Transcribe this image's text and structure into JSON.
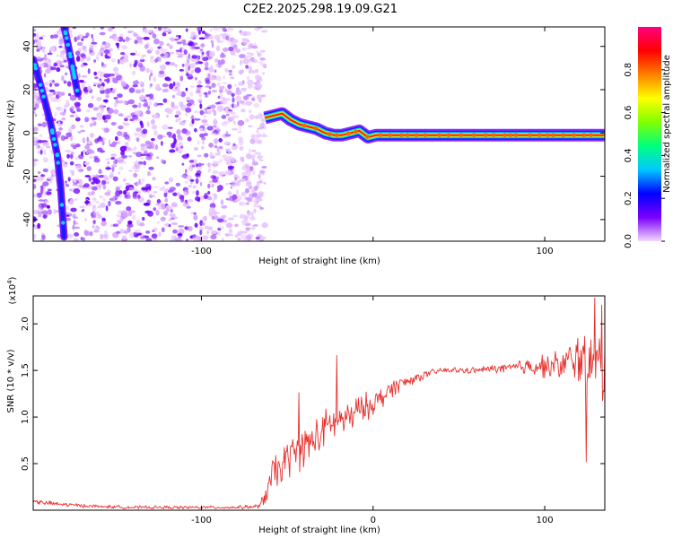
{
  "title": "C2E2.2025.298.19.09.G21",
  "chart_data": [
    {
      "type": "heatmap",
      "xlabel": "Height of straight line (km)",
      "ylabel": "Frequency (Hz)",
      "xlim": [
        -198,
        135
      ],
      "ylim": [
        -50,
        49
      ],
      "xticks": [
        -100,
        0,
        100
      ],
      "xtick_labels": [
        "-100",
        "",
        "100"
      ],
      "yticks": [
        -40,
        -20,
        0,
        20,
        40
      ],
      "colorbar": {
        "label": "Normalized spectral amplitude",
        "range": [
          0,
          1
        ],
        "ticks": [
          0.0,
          0.2,
          0.4,
          0.6,
          0.8
        ],
        "tick_labels": [
          "0.0",
          "0.2",
          "0.4",
          "0.6",
          "0.8"
        ],
        "colormap": [
          "#f4d9ff",
          "#7a00ff",
          "#0000ff",
          "#00c8ff",
          "#00ff80",
          "#80ff00",
          "#ffff00",
          "#ff8000",
          "#ff0000",
          "#ff0080"
        ]
      },
      "noise_region_x": [
        -198,
        -63
      ],
      "trace": {
        "x": [
          -63,
          -58,
          -53,
          -48,
          -43,
          -38,
          -33,
          -28,
          -23,
          -18,
          -13,
          -8,
          -3,
          2,
          7,
          12,
          20,
          40,
          60,
          80,
          100,
          120,
          135
        ],
        "y": [
          7,
          8,
          9,
          6,
          4,
          3,
          2,
          0,
          -1,
          -1,
          0,
          1,
          -2,
          -1,
          -1,
          -1,
          -1,
          -1,
          -1,
          -1,
          -1,
          -1,
          -1
        ]
      },
      "diagonal_streaks": [
        {
          "x": [
            -198,
            -193,
            -188,
            -184,
            -182,
            -180
          ],
          "y": [
            34,
            20,
            5,
            -10,
            -25,
            -48
          ]
        },
        {
          "x": [
            -180,
            -178,
            -175,
            -172
          ],
          "y": [
            49,
            42,
            30,
            18
          ]
        }
      ]
    },
    {
      "type": "line",
      "xlabel": "Height of straight line (km)",
      "ylabel": "SNR (10 * v/v)",
      "y_multiplier": "(x10",
      "y_multiplier_exp": "4",
      "y_multiplier_close": ")",
      "xlim": [
        -198,
        135
      ],
      "ylim": [
        0,
        2.3
      ],
      "xticks": [
        -100,
        0,
        100
      ],
      "xtick_labels": [
        "-100",
        "0",
        "100"
      ],
      "yticks": [
        0.5,
        1.0,
        1.5,
        2.0
      ],
      "ytick_labels": [
        "0.5",
        "1.0",
        "1.5",
        "2.0"
      ],
      "color": "#e8302e",
      "series": [
        {
          "x": [
            -198,
            -180,
            -160,
            -140,
            -120,
            -100,
            -80,
            -66,
            -62,
            -58,
            -54,
            -50,
            -45,
            -40,
            -35,
            -30,
            -25,
            -20,
            -15,
            -10,
            -5,
            0,
            5,
            10,
            15,
            20,
            25,
            30,
            35,
            40,
            50,
            60,
            70,
            80,
            90,
            100,
            110,
            115,
            120,
            125,
            130,
            135
          ],
          "y": [
            0.09,
            0.06,
            0.04,
            0.03,
            0.03,
            0.03,
            0.03,
            0.04,
            0.2,
            0.38,
            0.45,
            0.55,
            0.62,
            0.68,
            0.75,
            0.82,
            0.92,
            0.98,
            0.97,
            1.05,
            1.1,
            1.15,
            1.2,
            1.3,
            1.35,
            1.38,
            1.42,
            1.45,
            1.48,
            1.5,
            1.5,
            1.5,
            1.52,
            1.52,
            1.55,
            1.55,
            1.55,
            1.6,
            1.65,
            1.55,
            1.6,
            1.5
          ],
          "noise_amplitude": [
            0.03,
            0.03,
            0.02,
            0.02,
            0.02,
            0.02,
            0.02,
            0.03,
            0.15,
            0.25,
            0.25,
            0.25,
            0.25,
            0.25,
            0.25,
            0.25,
            0.25,
            0.22,
            0.22,
            0.2,
            0.18,
            0.15,
            0.15,
            0.12,
            0.1,
            0.08,
            0.06,
            0.05,
            0.04,
            0.04,
            0.04,
            0.04,
            0.05,
            0.08,
            0.12,
            0.15,
            0.2,
            0.25,
            0.35,
            0.4,
            0.45,
            0.5
          ]
        }
      ],
      "spikes": [
        {
          "x": -21,
          "y": 1.66
        },
        {
          "x": -43,
          "y": 1.26
        },
        {
          "x": 124,
          "y": 0.52
        },
        {
          "x": 129,
          "y": 2.28
        },
        {
          "x": 133,
          "y": 2.2
        }
      ]
    }
  ]
}
